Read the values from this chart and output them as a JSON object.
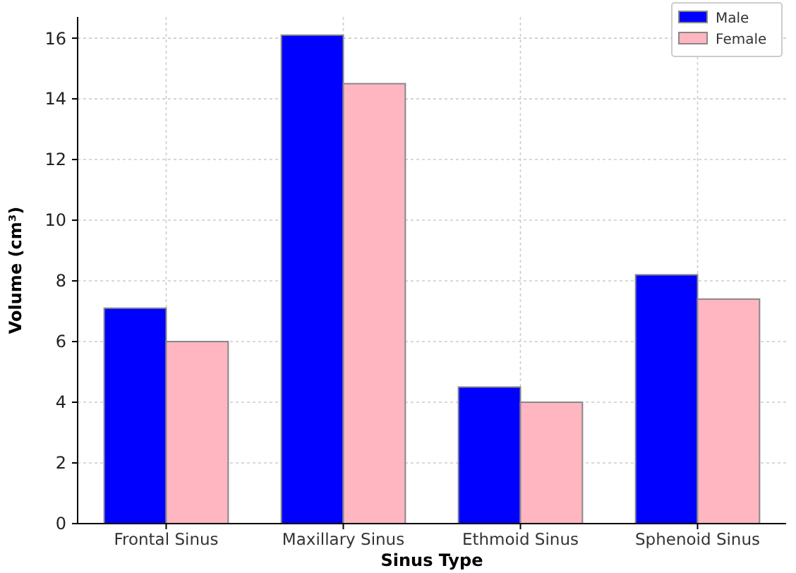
{
  "chart_data": {
    "type": "bar",
    "xlabel": "Sinus Type",
    "ylabel": "Volume (cm³)",
    "categories": [
      "Frontal Sinus",
      "Maxillary Sinus",
      "Ethmoid Sinus",
      "Sphenoid Sinus"
    ],
    "series": [
      {
        "name": "Male",
        "color": "#0000ff",
        "values": [
          7.1,
          16.1,
          4.5,
          8.2
        ]
      },
      {
        "name": "Female",
        "color": "#ffb6c1",
        "values": [
          6.0,
          14.5,
          4.0,
          7.4
        ]
      }
    ],
    "ylim": [
      0,
      16.7
    ],
    "yticks": [
      0,
      2,
      4,
      6,
      8,
      10,
      12,
      14,
      16
    ],
    "grid": true,
    "legend": "top right"
  }
}
